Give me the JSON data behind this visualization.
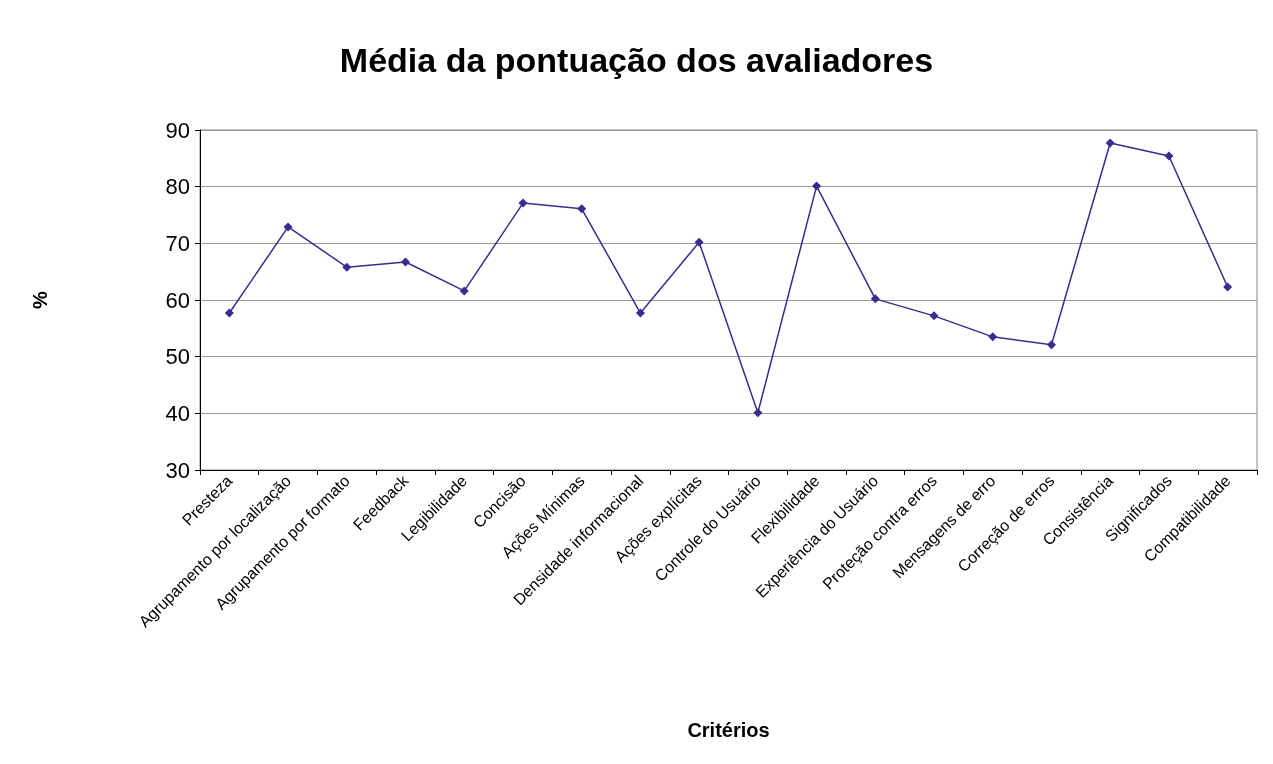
{
  "chart_data": {
    "type": "line",
    "title": "Média da pontuação dos avaliadores",
    "xlabel": "Critérios",
    "ylabel": "%",
    "categories": [
      "Presteza",
      "Agrupamento por localização",
      "Agrupamento por formato",
      "Feedback",
      "Legibilidade",
      "Concisão",
      "Ações Mínimas",
      "Densidade informacional",
      "Ações explícitas",
      "Controle do Usuário",
      "Flexibilidade",
      "Experiência do Usuário",
      "Proteção contra erros",
      "Mensagens de erro",
      "Correção de erros",
      "Consistência",
      "Significados",
      "Compatibilidade"
    ],
    "series": [
      {
        "color": "#3b2a8f",
        "values": [
          57.7,
          72.9,
          65.8,
          66.7,
          61.6,
          77.1,
          76.1,
          57.7,
          70.2,
          40.1,
          80.1,
          60.2,
          57.2,
          53.5,
          52.1,
          87.7,
          85.4,
          62.3
        ]
      }
    ],
    "ylim": [
      30,
      90
    ],
    "yticks": [
      30,
      40,
      50,
      60,
      70,
      80,
      90
    ],
    "grid": "y",
    "marker": "diamond",
    "line_style": "solid"
  }
}
